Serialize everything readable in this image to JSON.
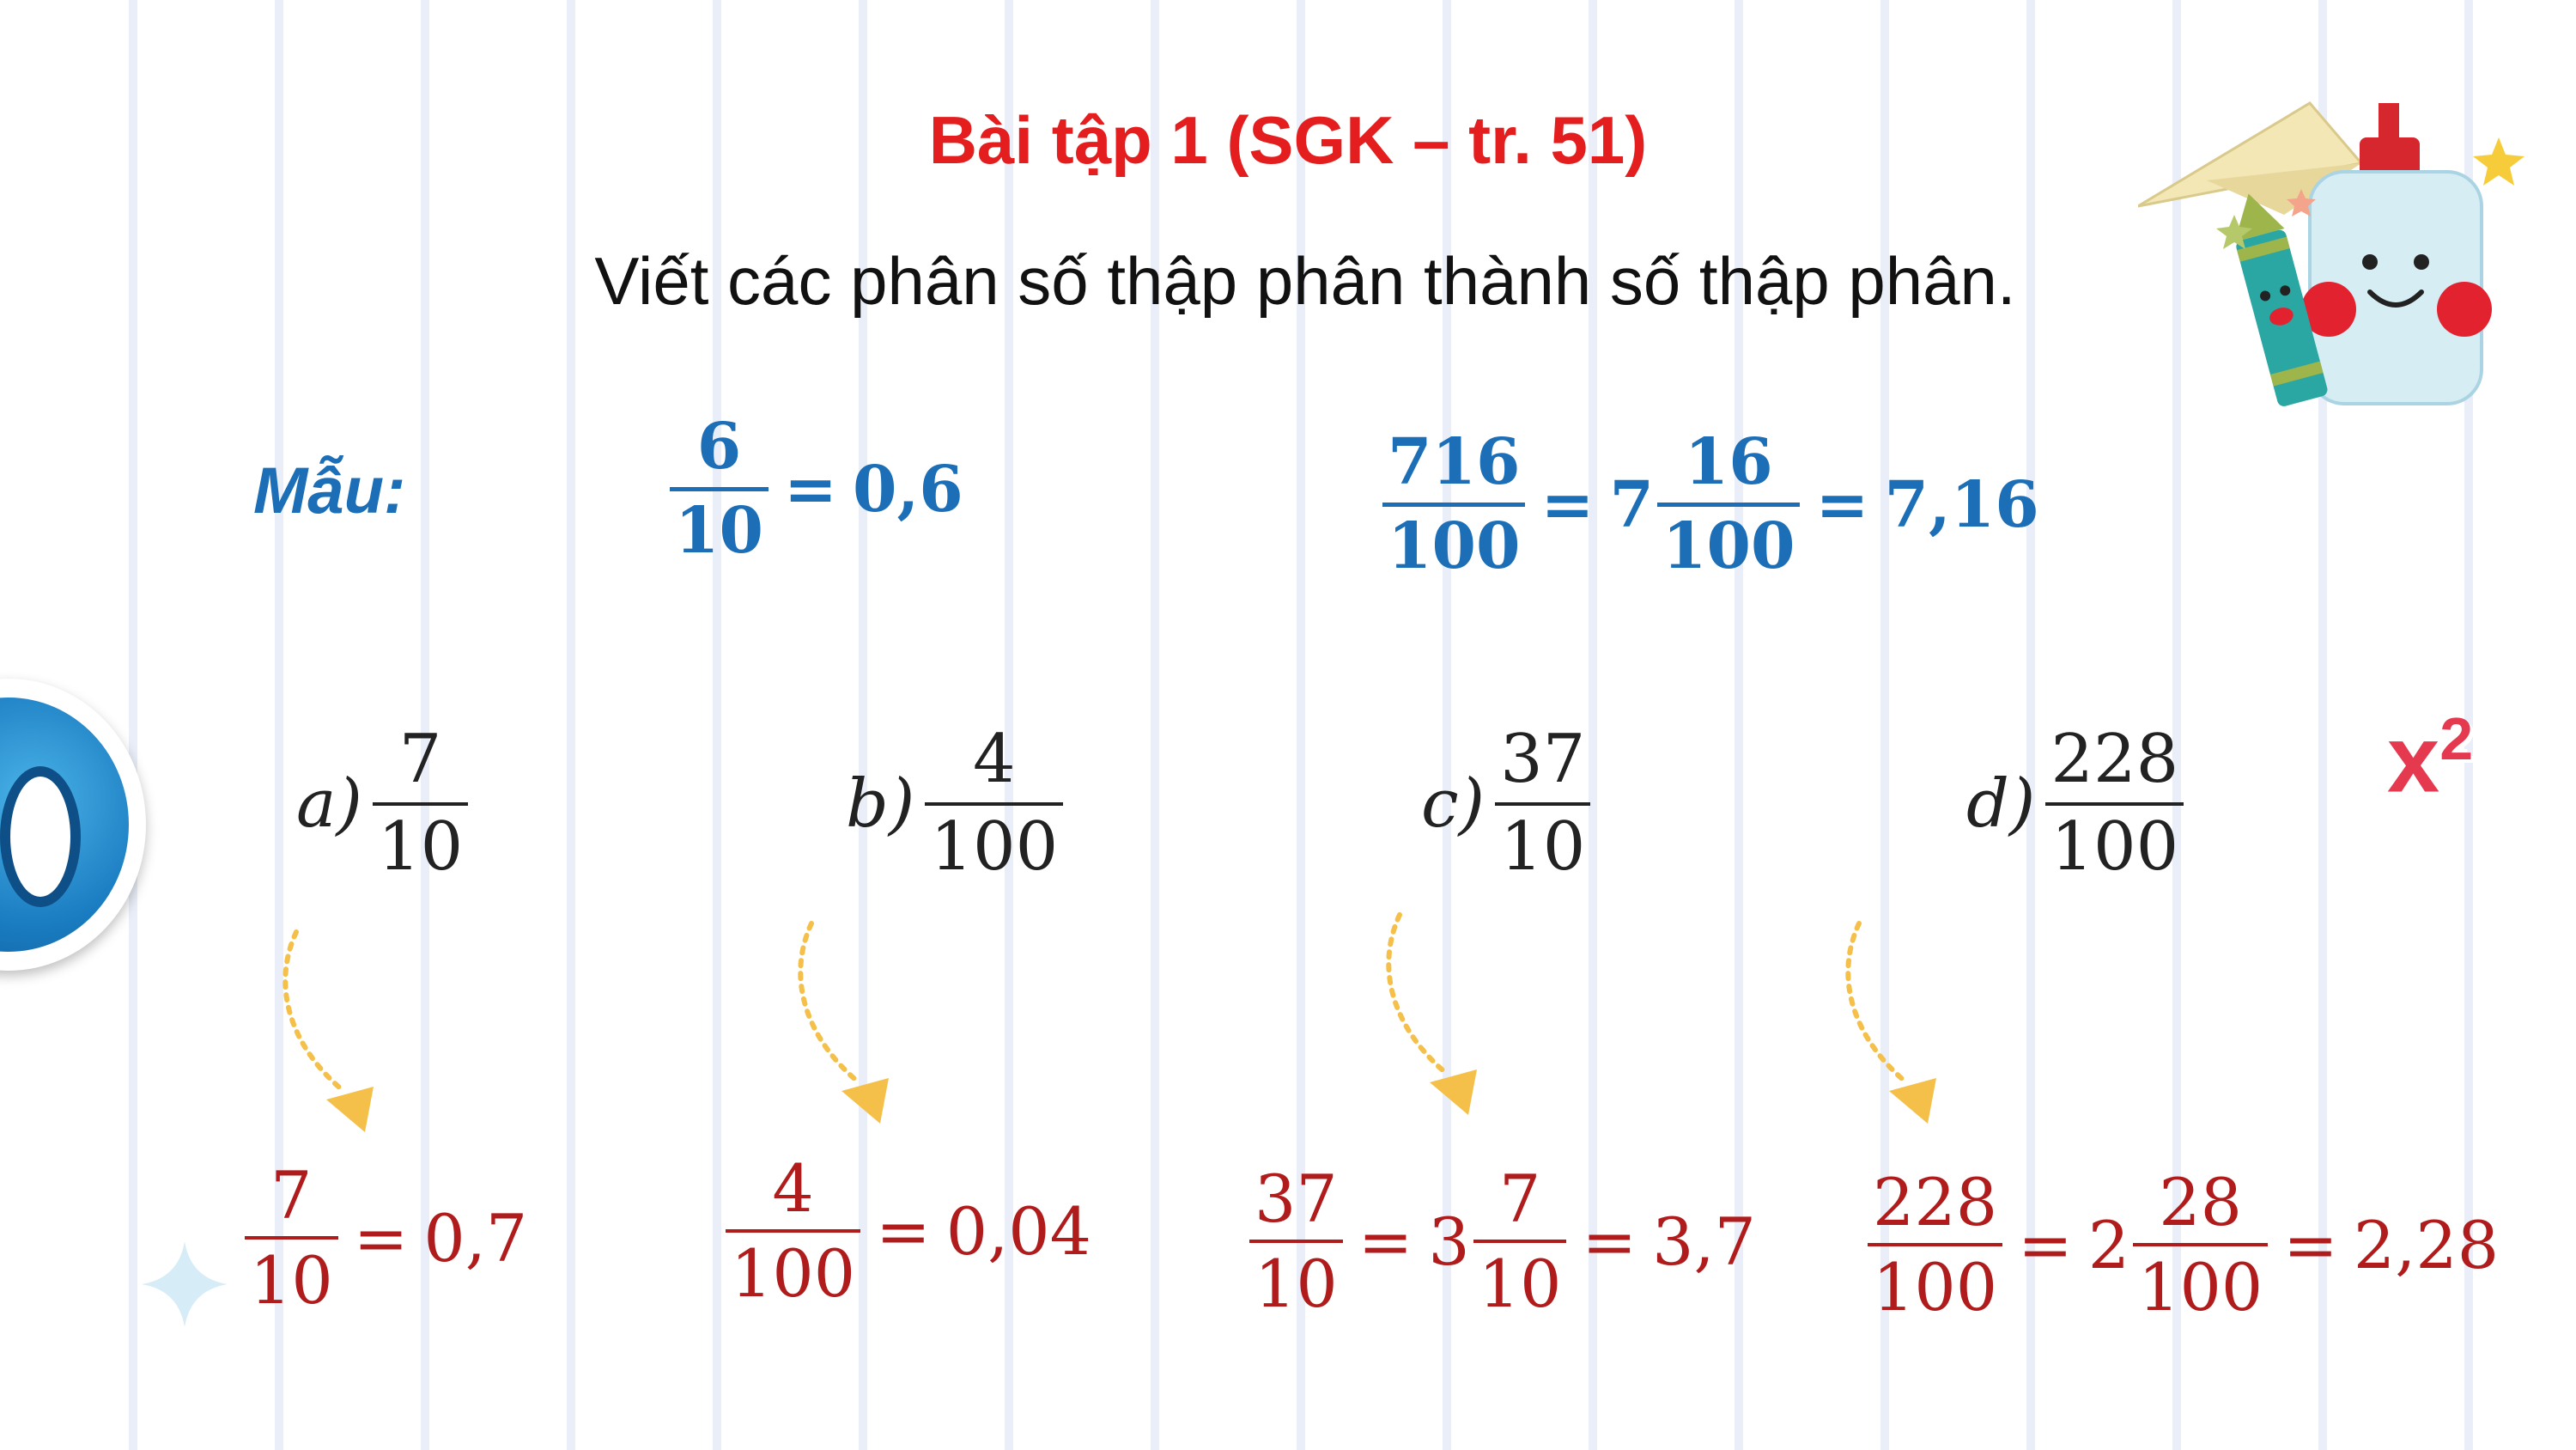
{
  "title": "Bài tập 1 (SGK – tr. 51)",
  "instruction": "Viết các phân số thập phân thành số thập phân.",
  "sample": {
    "label": "Mẫu:",
    "ex1": {
      "num": "6",
      "den": "10",
      "eq": "=",
      "result": "0,6"
    },
    "ex2": {
      "num": "716",
      "den": "100",
      "eq1": "=",
      "whole": "7",
      "fnum": "16",
      "fden": "100",
      "eq2": "=",
      "result": "7,16"
    }
  },
  "exercises": [
    {
      "label": "a)",
      "num": "7",
      "den": "10"
    },
    {
      "label": "b)",
      "num": "4",
      "den": "100"
    },
    {
      "label": "c)",
      "num": "37",
      "den": "10"
    },
    {
      "label": "d)",
      "num": "228",
      "den": "100"
    }
  ],
  "answers": {
    "a": {
      "num": "7",
      "den": "10",
      "eq": "=",
      "result": "0,7"
    },
    "b": {
      "num": "4",
      "den": "100",
      "eq": "=",
      "result": "0,04"
    },
    "c": {
      "num": "37",
      "den": "10",
      "eq1": "=",
      "whole": "3",
      "fnum": "7",
      "fden": "10",
      "eq2": "=",
      "result": "3,7"
    },
    "d": {
      "num": "228",
      "den": "100",
      "eq1": "=",
      "whole": "2",
      "fnum": "28",
      "fden": "100",
      "eq2": "=",
      "result": "2,28"
    }
  },
  "decorations": {
    "ring_icon": "letter-o-icon",
    "x2_sticker": {
      "base": "x",
      "exp": "2"
    },
    "stationery_icon": "glue-crayon-paper-plane-icon",
    "arrow_icon": "curved-arrow-down-icon"
  },
  "colors": {
    "title": "#e41e1e",
    "sample": "#1c6fb7",
    "answer": "#b01c1c",
    "arrow": "#f4c04a"
  }
}
